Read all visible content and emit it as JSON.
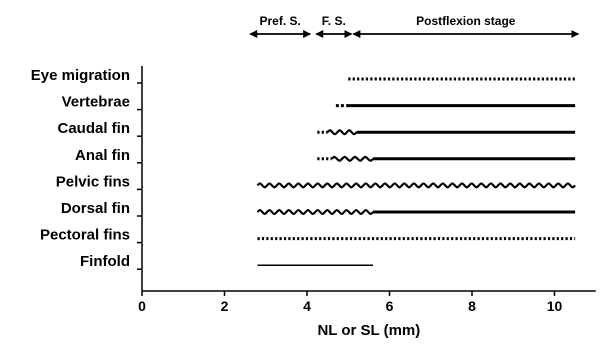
{
  "chart_data": {
    "type": "timeline",
    "xlabel": "NL or SL (mm)",
    "xlim": [
      0,
      11
    ],
    "xticks": [
      0,
      2,
      4,
      6,
      8,
      10
    ],
    "stages": [
      {
        "label": "Pref. S.",
        "start": 2.6,
        "end": 4.1
      },
      {
        "label": "F. S.",
        "start": 4.2,
        "end": 5.1
      },
      {
        "label": "Postflexion stage",
        "start": 5.1,
        "end": 10.6
      }
    ],
    "rows": [
      {
        "label": "Eye migration",
        "segments": [
          {
            "start": 5.0,
            "end": 10.5,
            "style": "dotted"
          }
        ]
      },
      {
        "label": "Vertebrae",
        "segments": [
          {
            "start": 4.7,
            "end": 4.9,
            "style": "dashed"
          },
          {
            "start": 4.95,
            "end": 10.5,
            "style": "solid"
          }
        ]
      },
      {
        "label": "Caudal fin",
        "segments": [
          {
            "start": 4.25,
            "end": 4.5,
            "style": "dotted"
          },
          {
            "start": 4.5,
            "end": 5.2,
            "style": "wavy"
          },
          {
            "start": 5.2,
            "end": 10.5,
            "style": "solid"
          }
        ]
      },
      {
        "label": "Anal fin",
        "segments": [
          {
            "start": 4.25,
            "end": 4.6,
            "style": "dotted"
          },
          {
            "start": 4.6,
            "end": 5.6,
            "style": "wavy"
          },
          {
            "start": 5.6,
            "end": 10.5,
            "style": "solid"
          }
        ]
      },
      {
        "label": "Pelvic fins",
        "segments": [
          {
            "start": 2.8,
            "end": 10.5,
            "style": "wavy"
          }
        ]
      },
      {
        "label": "Dorsal fin",
        "segments": [
          {
            "start": 2.8,
            "end": 5.6,
            "style": "wavy"
          },
          {
            "start": 5.6,
            "end": 10.5,
            "style": "solid"
          }
        ]
      },
      {
        "label": "Pectoral fins",
        "segments": [
          {
            "start": 2.8,
            "end": 10.5,
            "style": "dotted"
          }
        ]
      },
      {
        "label": "Finfold",
        "segments": [
          {
            "start": 2.8,
            "end": 5.6,
            "style": "thin"
          }
        ]
      }
    ]
  }
}
